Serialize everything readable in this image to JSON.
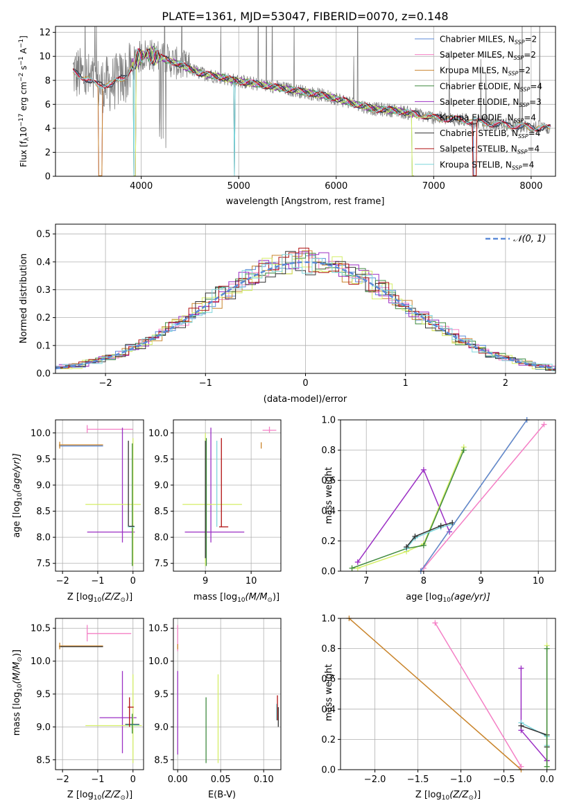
{
  "colors": {
    "chabrier_miles": "#5b8ad8",
    "salpeter_miles": "#f47fc5",
    "kroupa_miles": "#c9842b",
    "chabrier_elodie": "#3f8a3f",
    "salpeter_elodie": "#9b2fc4",
    "kroupa_elodie": "#d4ee66",
    "chabrier_stelib": "#333333",
    "salpeter_stelib": "#b01010",
    "kroupa_stelib": "#7dd6dc",
    "data": "#808080",
    "gauss": "#5b8ad8"
  },
  "legend_entries": {
    "chabrier_miles": "Chabrier MILES, N",
    "salpeter_miles": "Salpeter MILES, N",
    "kroupa_miles": "Kroupa MILES, N",
    "chabrier_elodie": "Chabrier ELODIE, N",
    "salpeter_elodie": "Salpeter ELODIE, N",
    "kroupa_elodie": "Kroupa ELODIE, N",
    "chabrier_stelib": "Chabrier STELIB, N",
    "salpeter_stelib": "Salpeter STELIB, N",
    "kroupa_stelib": "Kroupa STELIB, N"
  },
  "chart_data": [
    {
      "type": "line",
      "title": "PLATE=1361, MJD=53047, FIBERID=0070, z=0.148",
      "xlabel": "wavelength [Angstrom, rest frame]",
      "ylabel_main": "Flux [f",
      "ylabel_tail": "10",
      "ylabel_exp": "−17",
      "ylabel_unit": " erg cm",
      "ylabel_exp2": "−2",
      "ylabel_s": " s",
      "ylabel_exp3": "−1",
      "ylabel_a": " A",
      "ylabel_exp4": "−1",
      "ylabel_close": "]",
      "xlim": [
        3120,
        8250
      ],
      "ylim": [
        0,
        12.5
      ],
      "xticks": [
        4000,
        5000,
        6000,
        7000,
        8000
      ],
      "yticks": [
        0,
        2,
        4,
        6,
        8,
        10,
        12
      ],
      "legend": [
        {
          "key": "chabrier_miles",
          "nssp": "2"
        },
        {
          "key": "salpeter_miles",
          "nssp": "2"
        },
        {
          "key": "kroupa_miles",
          "nssp": "2"
        },
        {
          "key": "chabrier_elodie",
          "nssp": "4"
        },
        {
          "key": "salpeter_elodie",
          "nssp": "3"
        },
        {
          "key": "kroupa_elodie",
          "nssp": "4"
        },
        {
          "key": "chabrier_stelib",
          "nssp": "4"
        },
        {
          "key": "salpeter_stelib",
          "nssp": "4"
        },
        {
          "key": "kroupa_stelib",
          "nssp": "4"
        }
      ],
      "legend_sub": "SSP",
      "continuum": [
        [
          3300,
          8.7
        ],
        [
          3400,
          8.3
        ],
        [
          3550,
          7.6
        ],
        [
          3700,
          7.7
        ],
        [
          3850,
          8.4
        ],
        [
          3950,
          9.8
        ],
        [
          4050,
          10.2
        ],
        [
          4200,
          9.9
        ],
        [
          4400,
          9.3
        ],
        [
          4600,
          8.6
        ],
        [
          4800,
          8.3
        ],
        [
          4950,
          8.0
        ],
        [
          5100,
          7.8
        ],
        [
          5400,
          7.4
        ],
        [
          5700,
          7.0
        ],
        [
          6000,
          6.5
        ],
        [
          6200,
          6.0
        ],
        [
          6400,
          5.6
        ],
        [
          6600,
          5.5
        ],
        [
          6800,
          5.2
        ],
        [
          7000,
          4.9
        ],
        [
          7300,
          4.7
        ],
        [
          7600,
          4.4
        ],
        [
          8000,
          4.1
        ],
        [
          8200,
          4.0
        ]
      ]
    },
    {
      "type": "bar",
      "xlabel": "(data-model)/error",
      "ylabel": "Normed distribution",
      "xlim": [
        -2.5,
        2.5
      ],
      "ylim": [
        0,
        0.535
      ],
      "xticks": [
        -2,
        -1,
        0,
        1,
        2
      ],
      "xtick_labels": [
        "−2",
        "−1",
        "0",
        "1",
        "2"
      ],
      "yticks": [
        0.0,
        0.1,
        0.2,
        0.3,
        0.4,
        0.5
      ],
      "ytick_labels": [
        "0.0",
        "0.1",
        "0.2",
        "0.3",
        "0.4",
        "0.5"
      ],
      "legend": "𝒩(0, 1)",
      "bin_width": 0.1
    },
    {
      "type": "scatter",
      "xlabel": "Z [log",
      "xlabel_sub": "10",
      "xlabel_tail": "(Z/Z",
      "xlabel_sun": "⊙",
      "xlabel_end": ")]",
      "ylabel": "age  [log",
      "ylabel_sub": "10",
      "ylabel_tail": "(age/yr)]",
      "xlim": [
        -2.2,
        0.3
      ],
      "ylim": [
        7.35,
        10.25
      ],
      "xticks": [
        -2,
        -1,
        0
      ],
      "xtick_labels": [
        "−2",
        "−1",
        "0"
      ],
      "yticks": [
        7.5,
        8.0,
        8.5,
        9.0,
        9.5,
        10.0
      ],
      "ytick_labels": [
        "7.5",
        "8.0",
        "8.5",
        "9.0",
        "9.5",
        "10.0"
      ]
    },
    {
      "type": "scatter",
      "xlabel": "mass [log",
      "xlabel_sub": "10",
      "xlabel_tail": "(M/M",
      "xlabel_sun": "⊙",
      "xlabel_end": ")]",
      "xlim": [
        8.3,
        10.65
      ],
      "ylim": [
        7.35,
        10.25
      ],
      "xticks": [
        9,
        10
      ],
      "xtick_labels": [
        "9",
        "10"
      ],
      "yticks": [
        7.5,
        8.0,
        8.5,
        9.0,
        9.5,
        10.0
      ],
      "ytick_labels": [
        "7.5",
        "8.0",
        "8.5",
        "9.0",
        "9.5",
        "10.0"
      ]
    },
    {
      "type": "line",
      "xlabel": "age  [log",
      "xlabel_sub": "10",
      "xlabel_tail": "(age/yr)]",
      "ylabel": "mass weight",
      "xlim": [
        6.55,
        10.3
      ],
      "ylim": [
        0,
        1
      ],
      "xticks": [
        7,
        8,
        9,
        10
      ],
      "xtick_labels": [
        "7",
        "8",
        "9",
        "10"
      ],
      "yticks": [
        0.0,
        0.2,
        0.4,
        0.6,
        0.8,
        1.0
      ],
      "ytick_labels": [
        "0.0",
        "0.2",
        "0.4",
        "0.6",
        "0.8",
        "1.0"
      ],
      "series": [
        {
          "key": "salpeter_elodie",
          "x": [
            6.85,
            8.0,
            8.45
          ],
          "y": [
            0.06,
            0.67,
            0.26
          ]
        },
        {
          "key": "kroupa_elodie",
          "x": [
            6.75,
            6.85,
            7.7,
            8.0,
            8.7
          ],
          "y": [
            0.02,
            0.02,
            0.13,
            0.18,
            0.82
          ]
        },
        {
          "key": "chabrier_elodie",
          "x": [
            6.75,
            7.7,
            8.0,
            8.7
          ],
          "y": [
            0.02,
            0.15,
            0.17,
            0.8
          ]
        },
        {
          "key": "kroupa_stelib",
          "x": [
            7.7,
            7.85,
            8.3,
            8.5
          ],
          "y": [
            0.15,
            0.22,
            0.29,
            0.31
          ]
        },
        {
          "key": "chabrier_stelib",
          "x": [
            7.7,
            7.85,
            8.3,
            8.5
          ],
          "y": [
            0.16,
            0.23,
            0.3,
            0.32
          ]
        },
        {
          "key": "salpeter_miles",
          "x": [
            8.0,
            10.1
          ],
          "y": [
            0.02,
            0.97
          ]
        },
        {
          "key": "kroupa_miles",
          "x": [
            7.95,
            9.8
          ],
          "y": [
            0.0,
            1.0
          ]
        },
        {
          "key": "chabrier_miles",
          "x": [
            7.95,
            9.8
          ],
          "y": [
            0.0,
            1.0
          ]
        }
      ]
    },
    {
      "type": "scatter",
      "xlabel": "Z [log",
      "xlabel_sub": "10",
      "xlabel_tail": "(Z/Z",
      "xlabel_sun": "⊙",
      "xlabel_end": ")]",
      "ylabel": "mass [log",
      "ylabel_sub": "10",
      "ylabel_tail": "(M/M",
      "ylabel_sun": "⊙",
      "ylabel_end": ")]",
      "xlim": [
        -2.2,
        0.3
      ],
      "ylim": [
        8.35,
        10.65
      ],
      "xticks": [
        -2,
        -1,
        0
      ],
      "xtick_labels": [
        "−2",
        "−1",
        "0"
      ],
      "yticks": [
        8.5,
        9.0,
        9.5,
        10.0,
        10.5
      ],
      "ytick_labels": [
        "8.5",
        "9.0",
        "9.5",
        "10.0",
        "10.5"
      ]
    },
    {
      "type": "scatter",
      "xlabel": "E(B-V)",
      "xlim": [
        -0.005,
        0.12
      ],
      "ylim": [
        8.35,
        10.65
      ],
      "xticks": [
        0.0,
        0.05,
        0.1
      ],
      "xtick_labels": [
        "0.00",
        "0.05",
        "0.10"
      ],
      "yticks": [
        8.5,
        9.0,
        9.5,
        10.0,
        10.5
      ],
      "ytick_labels": [
        "8.5",
        "9.0",
        "9.5",
        "10.0",
        "10.5"
      ]
    },
    {
      "type": "line",
      "xlabel": "Z [log",
      "xlabel_sub": "10",
      "xlabel_tail": "(Z/Z",
      "xlabel_sun": "⊙",
      "xlabel_end": ")]",
      "ylabel": "mass weight",
      "xlim": [
        -2.4,
        0.1
      ],
      "ylim": [
        0,
        1
      ],
      "xticks": [
        -2.0,
        -1.5,
        -1.0,
        -0.5,
        0.0
      ],
      "xtick_labels": [
        "−2.0",
        "−1.5",
        "−1.0",
        "−0.5",
        "0.0"
      ],
      "yticks": [
        0.0,
        0.2,
        0.4,
        0.6,
        0.8,
        1.0
      ],
      "ytick_labels": [
        "0.0",
        "0.2",
        "0.4",
        "0.6",
        "0.8",
        "1.0"
      ],
      "series": [
        {
          "key": "kroupa_miles",
          "x": [
            -2.3,
            -0.3
          ],
          "y": [
            1.0,
            0.0
          ]
        },
        {
          "key": "salpeter_miles",
          "x": [
            -1.3,
            -0.3
          ],
          "y": [
            0.97,
            0.02
          ]
        },
        {
          "key": "salpeter_elodie",
          "x": [
            -0.3,
            -0.3,
            0.0,
            0.0
          ],
          "y": [
            0.67,
            0.26,
            0.06,
            0.06
          ]
        },
        {
          "key": "kroupa_stelib",
          "x": [
            -0.3,
            0.0,
            0.0
          ],
          "y": [
            0.31,
            0.22,
            0.16
          ]
        },
        {
          "key": "chabrier_stelib",
          "x": [
            -0.3,
            0.0,
            0.0
          ],
          "y": [
            0.29,
            0.23,
            0.15
          ]
        },
        {
          "key": "kroupa_elodie",
          "x": [
            0.0,
            0.0
          ],
          "y": [
            0.82,
            0.02
          ]
        },
        {
          "key": "chabrier_elodie",
          "x": [
            0.0,
            0.0
          ],
          "y": [
            0.8,
            0.02
          ]
        }
      ]
    }
  ]
}
